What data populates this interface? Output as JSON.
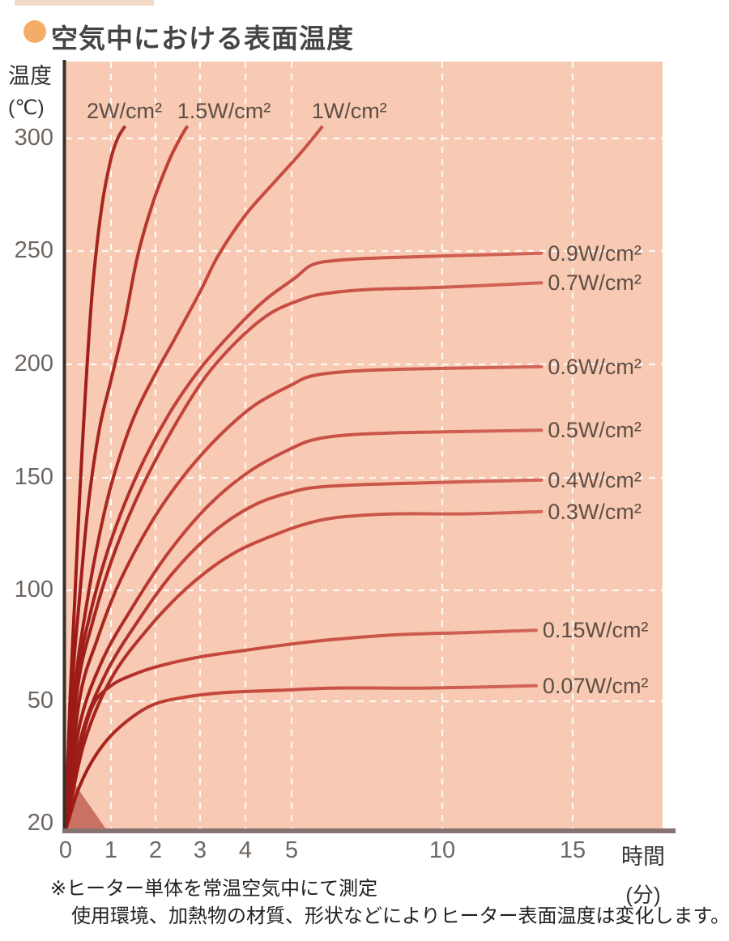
{
  "footnotes": [
    "※ヒーター単体を常温空気中にて測定",
    "使用環境、加熱物の材質、形状などによりヒーター表面温度は変化します。"
  ],
  "chart_data": {
    "type": "line",
    "title": "空気中における表面温度",
    "ylabel": "温度",
    "yunit": "(℃)",
    "xlabel": "時間",
    "xunit": "(分)",
    "x_ticks": [
      0,
      1,
      2,
      3,
      4,
      5,
      10,
      15
    ],
    "y_ticks": [
      300,
      250,
      200,
      150,
      100,
      50,
      20
    ],
    "x_range": [
      0,
      15.5
    ],
    "y_range": [
      20,
      305
    ],
    "grid": "white-dashed",
    "legend_position": "inline-labels",
    "series": [
      {
        "label": "2W/cm²",
        "placement": "top",
        "end_temp_c": 305,
        "points": [
          [
            0,
            20
          ],
          [
            0.1,
            52
          ],
          [
            0.2,
            95
          ],
          [
            0.3,
            138
          ],
          [
            0.45,
            192
          ],
          [
            0.6,
            235
          ],
          [
            0.8,
            270
          ],
          [
            1.0,
            291
          ],
          [
            1.15,
            300
          ],
          [
            1.3,
            305
          ]
        ]
      },
      {
        "label": "1.5W/cm²",
        "placement": "top",
        "end_temp_c": 305,
        "points": [
          [
            0,
            20
          ],
          [
            0.15,
            58
          ],
          [
            0.3,
            95
          ],
          [
            0.5,
            138
          ],
          [
            0.75,
            172
          ],
          [
            1.0,
            193
          ],
          [
            1.3,
            218
          ],
          [
            1.6,
            248
          ],
          [
            1.95,
            272
          ],
          [
            2.3,
            290
          ],
          [
            2.55,
            300
          ],
          [
            2.7,
            305
          ]
        ]
      },
      {
        "label": "1W/cm²",
        "placement": "top",
        "end_temp_c": 305,
        "points": [
          [
            0,
            20
          ],
          [
            0.2,
            55
          ],
          [
            0.45,
            92
          ],
          [
            0.75,
            125
          ],
          [
            1.05,
            150
          ],
          [
            1.5,
            176
          ],
          [
            2.0,
            196
          ],
          [
            2.45,
            212
          ],
          [
            3.0,
            232
          ],
          [
            3.4,
            248
          ],
          [
            4.0,
            266
          ],
          [
            4.6,
            280
          ],
          [
            5.2,
            292
          ],
          [
            5.7,
            300
          ],
          [
            6.0,
            305
          ]
        ]
      },
      {
        "label": "0.9W/cm²",
        "placement": "right",
        "end_temp_c": 249,
        "points": [
          [
            0,
            20
          ],
          [
            0.25,
            58
          ],
          [
            0.55,
            90
          ],
          [
            1.0,
            122
          ],
          [
            1.6,
            152
          ],
          [
            2.3,
            178
          ],
          [
            3.0,
            198
          ],
          [
            3.7,
            214
          ],
          [
            4.4,
            228
          ],
          [
            5.1,
            238
          ],
          [
            5.7,
            244
          ],
          [
            6.6,
            246
          ],
          [
            8.0,
            247
          ],
          [
            10.5,
            248
          ],
          [
            13.8,
            249
          ]
        ]
      },
      {
        "label": "0.7W/cm²",
        "placement": "right",
        "end_temp_c": 236,
        "points": [
          [
            0,
            20
          ],
          [
            0.25,
            54
          ],
          [
            0.6,
            86
          ],
          [
            1.1,
            118
          ],
          [
            1.7,
            146
          ],
          [
            2.4,
            172
          ],
          [
            3.1,
            194
          ],
          [
            3.8,
            210
          ],
          [
            4.5,
            222
          ],
          [
            5.2,
            228
          ],
          [
            6.0,
            231
          ],
          [
            7.5,
            233
          ],
          [
            10.0,
            234
          ],
          [
            13.8,
            236
          ]
        ]
      },
      {
        "label": "0.6W/cm²",
        "placement": "right",
        "end_temp_c": 199,
        "points": [
          [
            0,
            20
          ],
          [
            0.3,
            50
          ],
          [
            0.7,
            78
          ],
          [
            1.2,
            104
          ],
          [
            1.9,
            130
          ],
          [
            2.6,
            150
          ],
          [
            3.4,
            168
          ],
          [
            4.2,
            182
          ],
          [
            5.0,
            191
          ],
          [
            5.7,
            195
          ],
          [
            7.0,
            197
          ],
          [
            9.0,
            198
          ],
          [
            13.8,
            199
          ]
        ]
      },
      {
        "label": "0.5W/cm²",
        "placement": "right",
        "end_temp_c": 171,
        "points": [
          [
            0,
            20
          ],
          [
            0.3,
            44
          ],
          [
            0.8,
            68
          ],
          [
            1.5,
            93
          ],
          [
            2.3,
            117
          ],
          [
            3.2,
            138
          ],
          [
            4.1,
            153
          ],
          [
            5.0,
            163
          ],
          [
            5.8,
            167
          ],
          [
            7.0,
            169
          ],
          [
            9.0,
            170
          ],
          [
            13.8,
            171
          ]
        ]
      },
      {
        "label": "0.4W/cm²",
        "placement": "right",
        "end_temp_c": 149,
        "points": [
          [
            0,
            20
          ],
          [
            0.35,
            42
          ],
          [
            0.9,
            63
          ],
          [
            1.6,
            86
          ],
          [
            2.4,
            108
          ],
          [
            3.3,
            126
          ],
          [
            4.2,
            138
          ],
          [
            5.1,
            144
          ],
          [
            6.0,
            146
          ],
          [
            7.5,
            147
          ],
          [
            10.0,
            148
          ],
          [
            13.8,
            149
          ]
        ]
      },
      {
        "label": "0.3W/cm²",
        "placement": "right",
        "end_temp_c": 135,
        "points": [
          [
            0,
            20
          ],
          [
            0.4,
            40
          ],
          [
            1.0,
            60
          ],
          [
            1.8,
            82
          ],
          [
            2.7,
            101
          ],
          [
            3.7,
            116
          ],
          [
            4.8,
            126
          ],
          [
            5.9,
            131
          ],
          [
            7.0,
            133
          ],
          [
            8.5,
            134
          ],
          [
            11.0,
            134
          ],
          [
            13.8,
            135
          ]
        ]
      },
      {
        "label": "0.15W/cm²",
        "placement": "right",
        "end_temp_c": 82,
        "points": [
          [
            0,
            20
          ],
          [
            0.3,
            38
          ],
          [
            0.6,
            49
          ],
          [
            1.0,
            57
          ],
          [
            1.5,
            62
          ],
          [
            2.1,
            66
          ],
          [
            3.0,
            70
          ],
          [
            4.0,
            73
          ],
          [
            5.1,
            76
          ],
          [
            6.5,
            78
          ],
          [
            8.5,
            80
          ],
          [
            11.0,
            81
          ],
          [
            13.6,
            82
          ]
        ]
      },
      {
        "label": "0.07W/cm²",
        "placement": "right",
        "end_temp_c": 57,
        "points": [
          [
            0,
            20
          ],
          [
            0.3,
            30
          ],
          [
            0.7,
            38
          ],
          [
            1.2,
            44
          ],
          [
            1.9,
            49
          ],
          [
            2.7,
            52
          ],
          [
            3.6,
            54
          ],
          [
            4.8,
            55
          ],
          [
            6.5,
            56
          ],
          [
            9.5,
            56
          ],
          [
            13.6,
            57
          ]
        ]
      }
    ],
    "colors": {
      "plot_bg": "#f8cab3",
      "curve_start": "#9a1814",
      "curve_mid": "#c2443a",
      "curve_end": "#d46a5d",
      "grid": "#ffffff",
      "y_axis": "#36302d",
      "x_axis": "#867371",
      "label_text": "#5f4e45",
      "tick_text": "#6e6661",
      "title_text": "#454545",
      "bullet": "#f3ad67"
    }
  }
}
